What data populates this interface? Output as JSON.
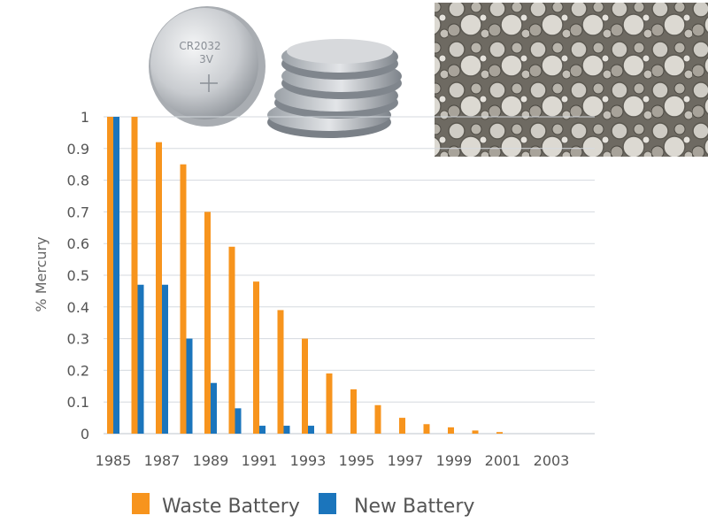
{
  "chart_data": {
    "type": "bar",
    "categories": [
      "1985",
      "1986",
      "1987",
      "1988",
      "1989",
      "1990",
      "1991",
      "1992",
      "1993",
      "1994",
      "1995",
      "1996",
      "1997",
      "1998",
      "1999",
      "2000",
      "2001",
      "2002",
      "2003"
    ],
    "x_tick_labels": [
      "1985",
      "1987",
      "1989",
      "1991",
      "1993",
      "1995",
      "1997",
      "1999",
      "2001",
      "2003"
    ],
    "y_tick_labels": [
      "0",
      "0.1",
      "0.2",
      "0.3",
      "0.4",
      "0.5",
      "0.6",
      "0.7",
      "0.8",
      "0.9",
      "1"
    ],
    "ylabel": "% Mercury",
    "xlabel": "",
    "ylim": [
      0,
      1
    ],
    "grid": true,
    "legend_position": "bottom",
    "series": [
      {
        "name": "Waste Battery",
        "color": "#f7941d",
        "values": [
          1.0,
          1.0,
          0.92,
          0.85,
          0.7,
          0.59,
          0.48,
          0.39,
          0.3,
          0.19,
          0.14,
          0.09,
          0.05,
          0.03,
          0.02,
          0.01,
          0.005,
          0,
          0
        ]
      },
      {
        "name": "New Battery",
        "color": "#1b75bc",
        "values": [
          1.0,
          0.47,
          0.47,
          0.3,
          0.16,
          0.08,
          0.025,
          0.025,
          0.025,
          0,
          0,
          0,
          0,
          0,
          0,
          0,
          0,
          0,
          0
        ]
      }
    ]
  },
  "coin_battery": {
    "model": "CR2032",
    "voltage": "3V"
  }
}
